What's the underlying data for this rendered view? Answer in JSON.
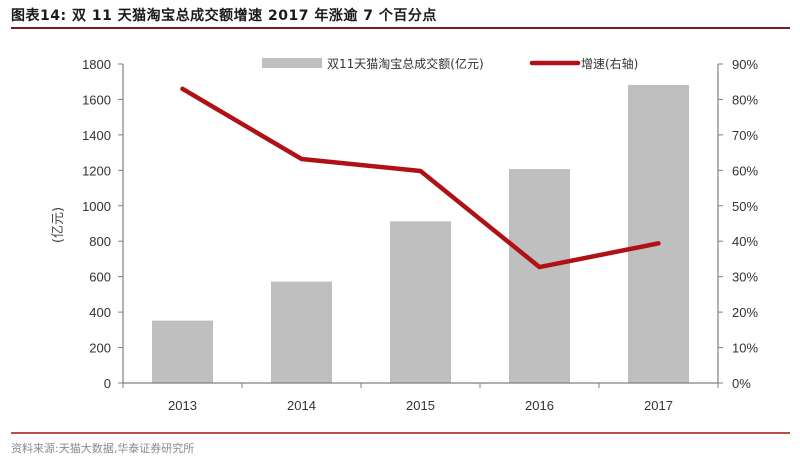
{
  "header": {
    "title": "图表14:  双 11 天猫淘宝总成交额增速 2017 年涨逾 7 个百分点"
  },
  "footer": {
    "source": "资料来源:天猫大数据,华泰证券研究所"
  },
  "colors": {
    "bar": "#bfbfbf",
    "line": "#b01116",
    "axis": "#808080",
    "rule_top": "#7a1c1c",
    "rule_bottom": "#b7504a"
  },
  "chart_data": {
    "type": "bar+line",
    "title": "双 11 天猫淘宝总成交额增速 2017 年涨逾 7 个百分点",
    "categories": [
      "2013",
      "2014",
      "2015",
      "2016",
      "2017"
    ],
    "series": [
      {
        "name": "双11天猫淘宝总成交额(亿元)",
        "type": "bar",
        "axis": "left",
        "values": [
          352,
          572,
          912,
          1207,
          1682
        ]
      },
      {
        "name": "增速(右轴)",
        "type": "line",
        "axis": "right",
        "values": [
          0.83,
          0.632,
          0.598,
          0.327,
          0.394
        ]
      }
    ],
    "xlabel": "",
    "ylabel": "(亿元)",
    "ylim": [
      0,
      1800
    ],
    "yticks": [
      "0",
      "200",
      "400",
      "600",
      "800",
      "1000",
      "1200",
      "1400",
      "1600",
      "1800"
    ],
    "y2lim": [
      0,
      0.9
    ],
    "y2ticks": [
      "0%",
      "10%",
      "20%",
      "30%",
      "40%",
      "50%",
      "60%",
      "70%",
      "80%",
      "90%"
    ],
    "legend_position": "top",
    "grid": false
  }
}
